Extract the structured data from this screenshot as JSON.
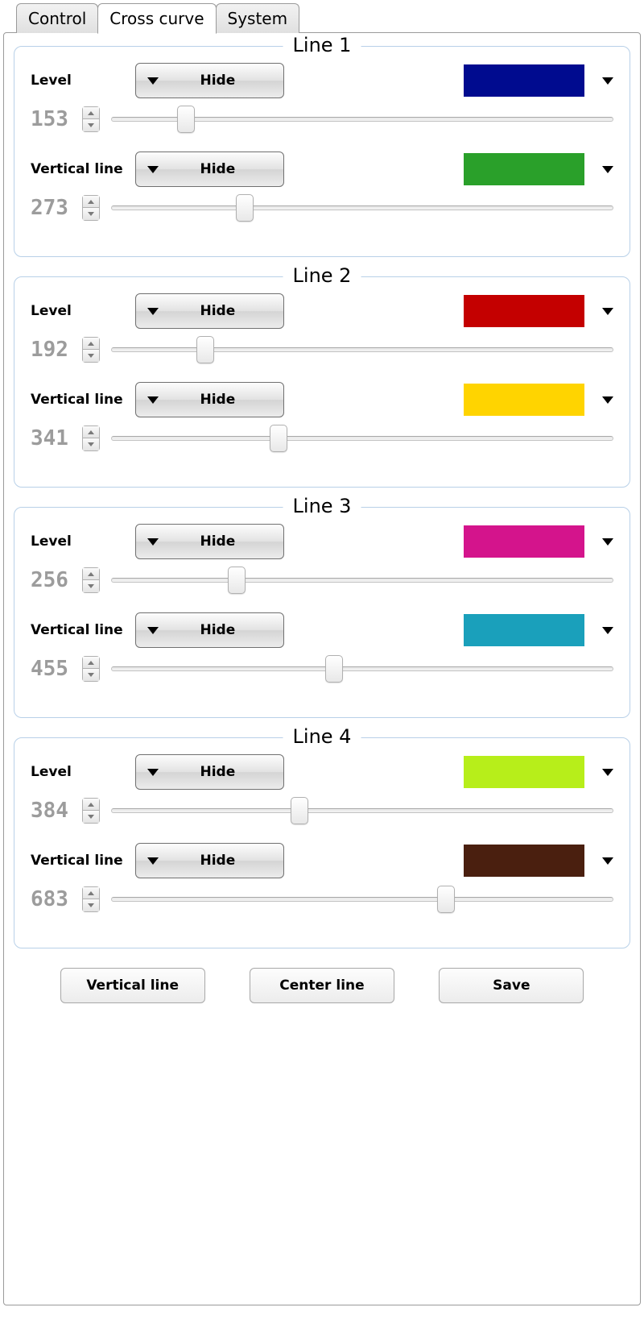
{
  "tabs": {
    "control": "Control",
    "cross_curve": "Cross curve",
    "system": "System",
    "active": "cross_curve"
  },
  "labels": {
    "level": "Level",
    "vertical_line": "Vertical line",
    "hide": "Hide"
  },
  "slider": {
    "min": 0,
    "max": 1024
  },
  "lines": [
    {
      "title": "Line 1",
      "level": {
        "value": 153,
        "color": "#000b8f"
      },
      "vertical": {
        "value": 273,
        "color": "#2aa02a"
      }
    },
    {
      "title": "Line 2",
      "level": {
        "value": 192,
        "color": "#c40000"
      },
      "vertical": {
        "value": 341,
        "color": "#ffd400"
      }
    },
    {
      "title": "Line 3",
      "level": {
        "value": 256,
        "color": "#d4148c"
      },
      "vertical": {
        "value": 455,
        "color": "#1aa0bb"
      }
    },
    {
      "title": "Line 4",
      "level": {
        "value": 384,
        "color": "#b7ee1a"
      },
      "vertical": {
        "value": 683,
        "color": "#4a1f0f"
      }
    }
  ],
  "footer": {
    "vertical_line": "Vertical line",
    "center_line": "Center line",
    "save": "Save"
  }
}
